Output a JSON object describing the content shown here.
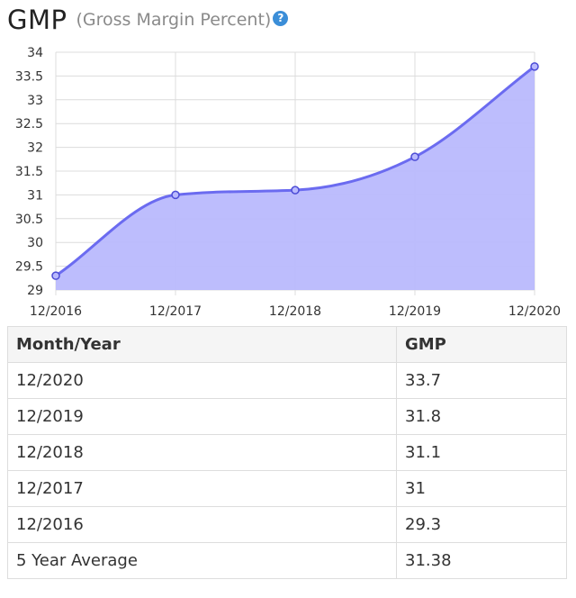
{
  "header": {
    "title": "GMP",
    "subtitle": "(Gross Margin Percent)",
    "help_icon": "?"
  },
  "colors": {
    "line": "#6b6bf0",
    "fill": "#b9b9fd",
    "grid": "#dcdcdc",
    "point_stroke": "#4c4cd6"
  },
  "chart_data": {
    "type": "area",
    "x": [
      "12/2016",
      "12/2017",
      "12/2018",
      "12/2019",
      "12/2020"
    ],
    "values": [
      29.3,
      31,
      31.1,
      31.8,
      33.7
    ],
    "ylim": [
      29,
      34
    ],
    "yticks": [
      29,
      29.5,
      30,
      30.5,
      31,
      31.5,
      32,
      32.5,
      33,
      33.5,
      34
    ],
    "grid": true,
    "smooth": true,
    "title": "",
    "xlabel": "",
    "ylabel": ""
  },
  "table": {
    "headers": [
      "Month/Year",
      "GMP"
    ],
    "rows": [
      [
        "12/2020",
        "33.7"
      ],
      [
        "12/2019",
        "31.8"
      ],
      [
        "12/2018",
        "31.1"
      ],
      [
        "12/2017",
        "31"
      ],
      [
        "12/2016",
        "29.3"
      ],
      [
        "5 Year Average",
        "31.38"
      ]
    ]
  }
}
